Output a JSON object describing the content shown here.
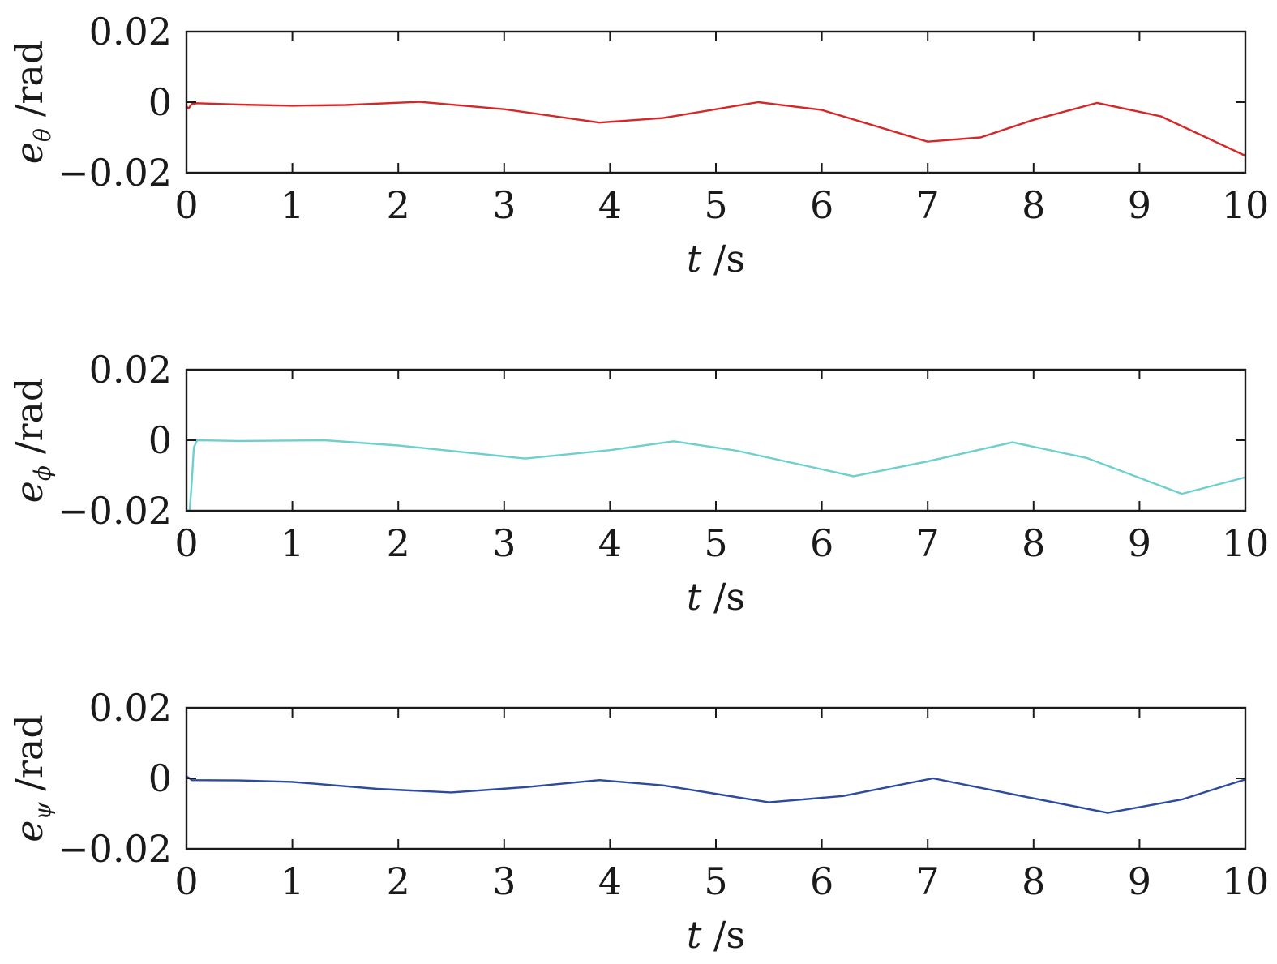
{
  "chart_data": [
    {
      "type": "line",
      "xlabel_var": "t",
      "xlabel_unit": "/s",
      "ylabel_var": "e",
      "ylabel_sub": "θ",
      "ylabel_unit": "/rad",
      "xlim": [
        0,
        10
      ],
      "ylim": [
        -0.02,
        0.02
      ],
      "xticks": [
        0,
        1,
        2,
        3,
        4,
        5,
        6,
        7,
        8,
        9,
        10
      ],
      "xtick_labels": [
        "0",
        "1",
        "2",
        "3",
        "4",
        "5",
        "6",
        "7",
        "8",
        "9",
        "10"
      ],
      "yticks": [
        -0.02,
        0,
        0.02
      ],
      "ytick_labels": [
        "−0.02",
        "0",
        "0.02"
      ],
      "grid": false,
      "series": [
        {
          "color": "#d62728",
          "x": [
            0,
            0.02,
            0.05,
            0.1,
            0.5,
            1.0,
            1.5,
            2.2,
            3.0,
            3.9,
            4.5,
            5.4,
            6.0,
            7.0,
            7.5,
            8.0,
            8.6,
            9.2,
            10.0
          ],
          "y": [
            -0.0012,
            -0.0018,
            -0.0005,
            -0.0003,
            -0.0007,
            -0.001,
            -0.0008,
            0.0001,
            -0.002,
            -0.0058,
            -0.0045,
            0.0,
            -0.0022,
            -0.0112,
            -0.01,
            -0.005,
            -0.0002,
            -0.004,
            -0.0152
          ]
        }
      ]
    },
    {
      "type": "line",
      "xlabel_var": "t",
      "xlabel_unit": "/s",
      "ylabel_var": "e",
      "ylabel_sub": "ϕ",
      "ylabel_unit": "/rad",
      "xlim": [
        0,
        10
      ],
      "ylim": [
        -0.02,
        0.02
      ],
      "xticks": [
        0,
        1,
        2,
        3,
        4,
        5,
        6,
        7,
        8,
        9,
        10
      ],
      "xtick_labels": [
        "0",
        "1",
        "2",
        "3",
        "4",
        "5",
        "6",
        "7",
        "8",
        "9",
        "10"
      ],
      "yticks": [
        -0.02,
        0,
        0.02
      ],
      "ytick_labels": [
        "−0.02",
        "0",
        "0.02"
      ],
      "grid": false,
      "series": [
        {
          "color": "#6ecfcf",
          "x": [
            0.03,
            0.05,
            0.07,
            0.1,
            0.5,
            1.3,
            2.0,
            3.2,
            4.0,
            4.6,
            5.2,
            6.3,
            7.0,
            7.8,
            8.5,
            9.4,
            10.0
          ],
          "y": [
            -0.02,
            -0.012,
            -0.002,
            0.0,
            -0.0002,
            0.0,
            -0.0015,
            -0.0052,
            -0.0028,
            -0.0003,
            -0.003,
            -0.0102,
            -0.006,
            -0.0006,
            -0.005,
            -0.0152,
            -0.0105
          ]
        }
      ]
    },
    {
      "type": "line",
      "xlabel_var": "t",
      "xlabel_unit": "/s",
      "ylabel_var": "e",
      "ylabel_sub": "ψ",
      "ylabel_unit": "/rad",
      "xlim": [
        0,
        10
      ],
      "ylim": [
        -0.02,
        0.02
      ],
      "xticks": [
        0,
        1,
        2,
        3,
        4,
        5,
        6,
        7,
        8,
        9,
        10
      ],
      "xtick_labels": [
        "0",
        "1",
        "2",
        "3",
        "4",
        "5",
        "6",
        "7",
        "8",
        "9",
        "10"
      ],
      "yticks": [
        -0.02,
        0,
        0.02
      ],
      "ytick_labels": [
        "−0.02",
        "0",
        "0.02"
      ],
      "grid": false,
      "series": [
        {
          "color": "#2c4a9e",
          "x": [
            0,
            0.02,
            0.05,
            0.5,
            1.0,
            1.8,
            2.5,
            3.2,
            3.9,
            4.5,
            5.5,
            6.2,
            7.05,
            7.8,
            8.7,
            9.4,
            10.0
          ],
          "y": [
            0.0005,
            0.0002,
            -0.0005,
            -0.0006,
            -0.001,
            -0.003,
            -0.004,
            -0.0025,
            -0.0005,
            -0.002,
            -0.0068,
            -0.005,
            0.0,
            -0.0045,
            -0.0098,
            -0.006,
            -0.0003
          ]
        }
      ]
    }
  ]
}
